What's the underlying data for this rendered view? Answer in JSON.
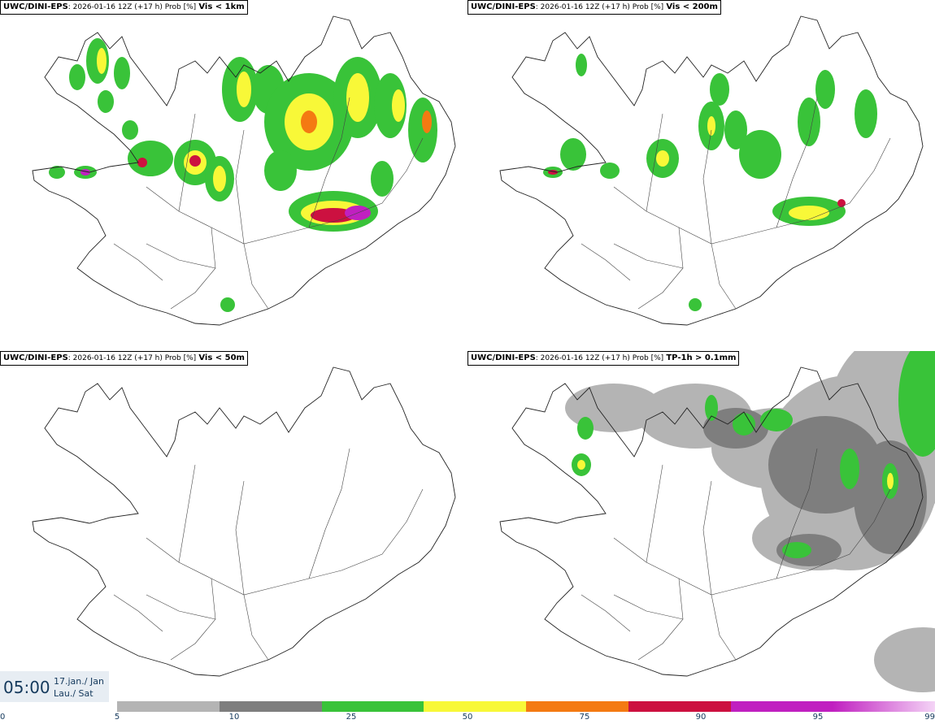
{
  "panels": [
    {
      "model": "UWC/DINI-EPS",
      "meta": ": 2026-01-16 12Z (+17 h) Prob [%]",
      "var": "Vis < 1km"
    },
    {
      "model": "UWC/DINI-EPS",
      "meta": ": 2026-01-16 12Z (+17 h) Prob [%]",
      "var": "Vis < 200m"
    },
    {
      "model": "UWC/DINI-EPS",
      "meta": ": 2026-01-16 12Z (+17 h) Prob [%]",
      "var": "Vis < 50m"
    },
    {
      "model": "UWC/DINI-EPS",
      "meta": ": 2026-01-16 12Z (+17 h) Prob [%]",
      "var": "TP-1h > 0.1mm"
    }
  ],
  "valid_time": {
    "time": "05:00",
    "date": "17.jan./ Jan",
    "weekday": "Lau./ Sat"
  },
  "colorbar": {
    "ticks": [
      "0",
      "5",
      "10",
      "25",
      "50",
      "75",
      "90",
      "95",
      "99"
    ],
    "colors": [
      "#b4b4b4",
      "#7e7e7e",
      "#39c339",
      "#f8f838",
      "#f47a12",
      "#cc1140",
      "#c020c0",
      "#e8a8ee"
    ]
  }
}
